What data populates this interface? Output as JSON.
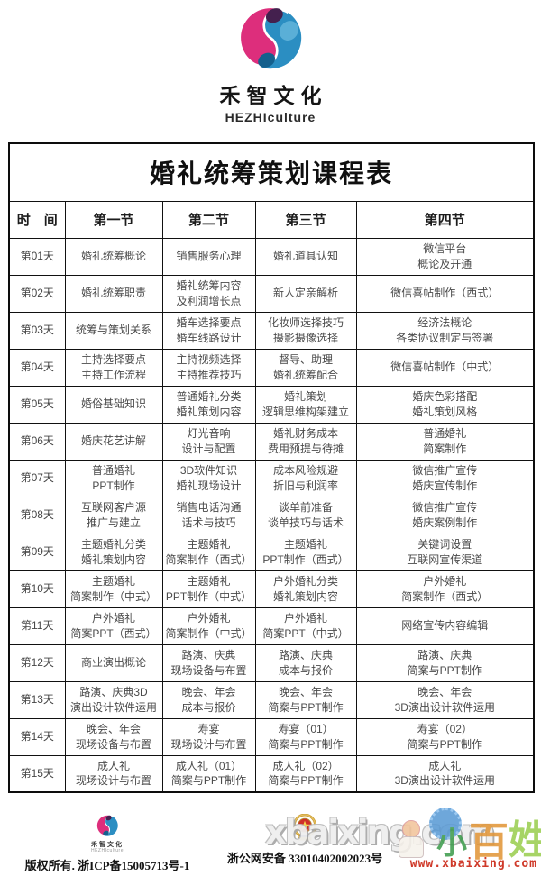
{
  "brand": {
    "name": "禾智文化",
    "subtitle": "HEZHIculture",
    "colors": {
      "magenta": "#DD2E7C",
      "dark_purple": "#44204E",
      "blue": "#2B8EC2",
      "dark_blue": "#14608D",
      "light_blue": "#5FB3D9"
    }
  },
  "table": {
    "title": "婚礼统筹策划课程表",
    "headers": [
      "时　间",
      "第一节",
      "第二节",
      "第三节",
      "第四节"
    ],
    "rows": [
      {
        "day": "第01天",
        "cells": [
          "婚礼统筹概论",
          "销售服务心理",
          "婚礼道具认知",
          "微信平台\n概论及开通"
        ]
      },
      {
        "day": "第02天",
        "cells": [
          "婚礼统筹职责",
          "婚礼统筹内容\n及利润增长点",
          "新人定亲解析",
          "微信喜帖制作（西式）"
        ]
      },
      {
        "day": "第03天",
        "cells": [
          "统筹与策划关系",
          "婚车选择要点\n婚车线路设计",
          "化妆师选择技巧\n摄影摄像选择",
          "经济法概论\n各类协议制定与签署"
        ]
      },
      {
        "day": "第04天",
        "cells": [
          "主持选择要点\n主持工作流程",
          "主持视频选择\n主持推荐技巧",
          "督导、助理\n婚礼统筹配合",
          "微信喜帖制作（中式）"
        ]
      },
      {
        "day": "第05天",
        "cells": [
          "婚俗基础知识",
          "普通婚礼分类\n婚礼策划内容",
          "婚礼策划\n逻辑思维构架建立",
          "婚庆色彩搭配\n婚礼策划风格"
        ]
      },
      {
        "day": "第06天",
        "cells": [
          "婚庆花艺讲解",
          "灯光音响\n设计与配置",
          "婚礼财务成本\n费用预提与待摊",
          "普通婚礼\n简案制作"
        ]
      },
      {
        "day": "第07天",
        "cells": [
          "普通婚礼\nPPT制作",
          "3D软件知识\n婚礼现场设计",
          "成本风险规避\n折旧与利润率",
          "微信推广宣传\n婚庆宣传制作"
        ]
      },
      {
        "day": "第08天",
        "cells": [
          "互联网客户源\n推广与建立",
          "销售电话沟通\n话术与技巧",
          "谈单前准备\n谈单技巧与话术",
          "微信推广宣传\n婚庆案例制作"
        ]
      },
      {
        "day": "第09天",
        "cells": [
          "主题婚礼分类\n婚礼策划内容",
          "主题婚礼\n简案制作（西式）",
          "主题婚礼\nPPT制作（西式）",
          "关键词设置\n互联网宣传渠道"
        ]
      },
      {
        "day": "第10天",
        "cells": [
          "主题婚礼\n简案制作（中式）",
          "主题婚礼\nPPT制作（中式）",
          "户外婚礼分类\n婚礼策划内容",
          "户外婚礼\n简案制作（西式）"
        ]
      },
      {
        "day": "第11天",
        "cells": [
          "户外婚礼\n简案PPT（西式）",
          "户外婚礼\n简案制作（中式）",
          "户外婚礼\n简案PPT（中式）",
          "网络宣传内容编辑"
        ]
      },
      {
        "day": "第12天",
        "cells": [
          "商业演出概论",
          "路演、庆典\n现场设备与布置",
          "路演、庆典\n成本与报价",
          "路演、庆典\n简案与PPT制作"
        ]
      },
      {
        "day": "第13天",
        "cells": [
          "路演、庆典3D\n演出设计软件运用",
          "晚会、年会\n成本与报价",
          "晚会、年会\n简案与PPT制作",
          "晚会、年会\n3D演出设计软件运用"
        ]
      },
      {
        "day": "第14天",
        "cells": [
          "晚会、年会\n现场设备与布置",
          "寿宴\n现场设计与布置",
          "寿宴（01）\n简案与PPT制作",
          "寿宴（02）\n简案与PPT制作"
        ]
      },
      {
        "day": "第15天",
        "cells": [
          "成人礼\n现场设计与布置",
          "成人礼（01）\n简案与PPT制作",
          "成人礼（02）\n简案与PPT制作",
          "成人礼\n3D演出设计软件运用"
        ]
      }
    ]
  },
  "footer": {
    "brand_name": "禾智文化",
    "brand_subtitle": "HEZHIculture",
    "copyright": "版权所有. 浙ICP备15005713号-1",
    "security_label": "浙公网安备 33010402002023号"
  },
  "watermark": {
    "big_text": "xbaixing.com",
    "url": "www.xbaixing.com",
    "mascot_chars": {
      "xiao": "小",
      "bai": "百",
      "xing": "姓"
    }
  }
}
